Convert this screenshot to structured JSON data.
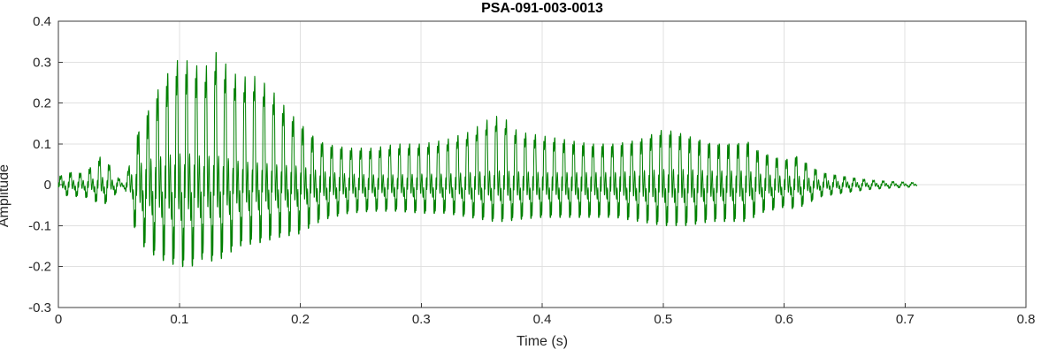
{
  "chart_data": {
    "type": "line",
    "title": "PSA-091-003-0013",
    "xlabel": "Time (s)",
    "ylabel": "Amplitude",
    "xlim": [
      0,
      0.8
    ],
    "ylim": [
      -0.3,
      0.4
    ],
    "xticks": [
      0,
      0.1,
      0.2,
      0.3,
      0.4,
      0.5,
      0.6,
      0.7,
      0.8
    ],
    "xtick_labels": [
      "0",
      "0.1",
      "0.2",
      "0.3",
      "0.4",
      "0.5",
      "0.6",
      "0.7",
      "0.8"
    ],
    "yticks": [
      -0.3,
      -0.2,
      -0.1,
      0,
      0.1,
      0.2,
      0.3,
      0.4
    ],
    "ytick_labels": [
      "-0.3",
      "-0.2",
      "-0.1",
      "0",
      "0.1",
      "0.2",
      "0.3",
      "0.4"
    ],
    "grid": true,
    "legend": null,
    "line_color": "#008000",
    "grid_color": "#e0e0e0",
    "axis_color": "#3b3b3b",
    "background": "#ffffff",
    "signal": {
      "description": "speech waveform envelope, amplitude vs time",
      "duration_s": 0.71,
      "f0_hz": 125,
      "body_freq_hz": 750,
      "sample_rate_hz": 6000,
      "envelope": {
        "t": [
          0.0,
          0.01,
          0.02,
          0.03,
          0.035,
          0.04,
          0.045,
          0.05,
          0.055,
          0.06,
          0.065,
          0.07,
          0.08,
          0.09,
          0.1,
          0.11,
          0.12,
          0.13,
          0.14,
          0.15,
          0.16,
          0.17,
          0.18,
          0.19,
          0.2,
          0.21,
          0.22,
          0.24,
          0.26,
          0.28,
          0.3,
          0.32,
          0.34,
          0.35,
          0.36,
          0.37,
          0.38,
          0.4,
          0.42,
          0.44,
          0.46,
          0.48,
          0.5,
          0.51,
          0.52,
          0.54,
          0.56,
          0.57,
          0.58,
          0.6,
          0.61,
          0.62,
          0.63,
          0.65,
          0.67,
          0.69,
          0.71
        ],
        "upper": [
          0.02,
          0.03,
          0.028,
          0.05,
          0.07,
          0.06,
          0.035,
          0.015,
          0.01,
          0.06,
          0.12,
          0.15,
          0.22,
          0.27,
          0.31,
          0.3,
          0.28,
          0.325,
          0.29,
          0.26,
          0.27,
          0.25,
          0.22,
          0.18,
          0.15,
          0.12,
          0.1,
          0.09,
          0.09,
          0.1,
          0.1,
          0.11,
          0.13,
          0.15,
          0.17,
          0.16,
          0.13,
          0.12,
          0.11,
          0.1,
          0.1,
          0.11,
          0.135,
          0.13,
          0.12,
          0.1,
          0.1,
          0.105,
          0.08,
          0.06,
          0.07,
          0.05,
          0.03,
          0.02,
          0.012,
          0.008,
          0.005
        ],
        "lower": [
          -0.02,
          -0.03,
          -0.028,
          -0.04,
          -0.05,
          -0.045,
          -0.03,
          -0.015,
          -0.01,
          -0.07,
          -0.13,
          -0.15,
          -0.175,
          -0.19,
          -0.2,
          -0.2,
          -0.18,
          -0.19,
          -0.17,
          -0.15,
          -0.145,
          -0.14,
          -0.13,
          -0.125,
          -0.12,
          -0.1,
          -0.085,
          -0.07,
          -0.065,
          -0.065,
          -0.07,
          -0.07,
          -0.08,
          -0.085,
          -0.09,
          -0.09,
          -0.085,
          -0.08,
          -0.08,
          -0.08,
          -0.08,
          -0.09,
          -0.1,
          -0.1,
          -0.1,
          -0.09,
          -0.09,
          -0.09,
          -0.07,
          -0.055,
          -0.06,
          -0.045,
          -0.03,
          -0.02,
          -0.012,
          -0.008,
          -0.005
        ]
      }
    }
  }
}
